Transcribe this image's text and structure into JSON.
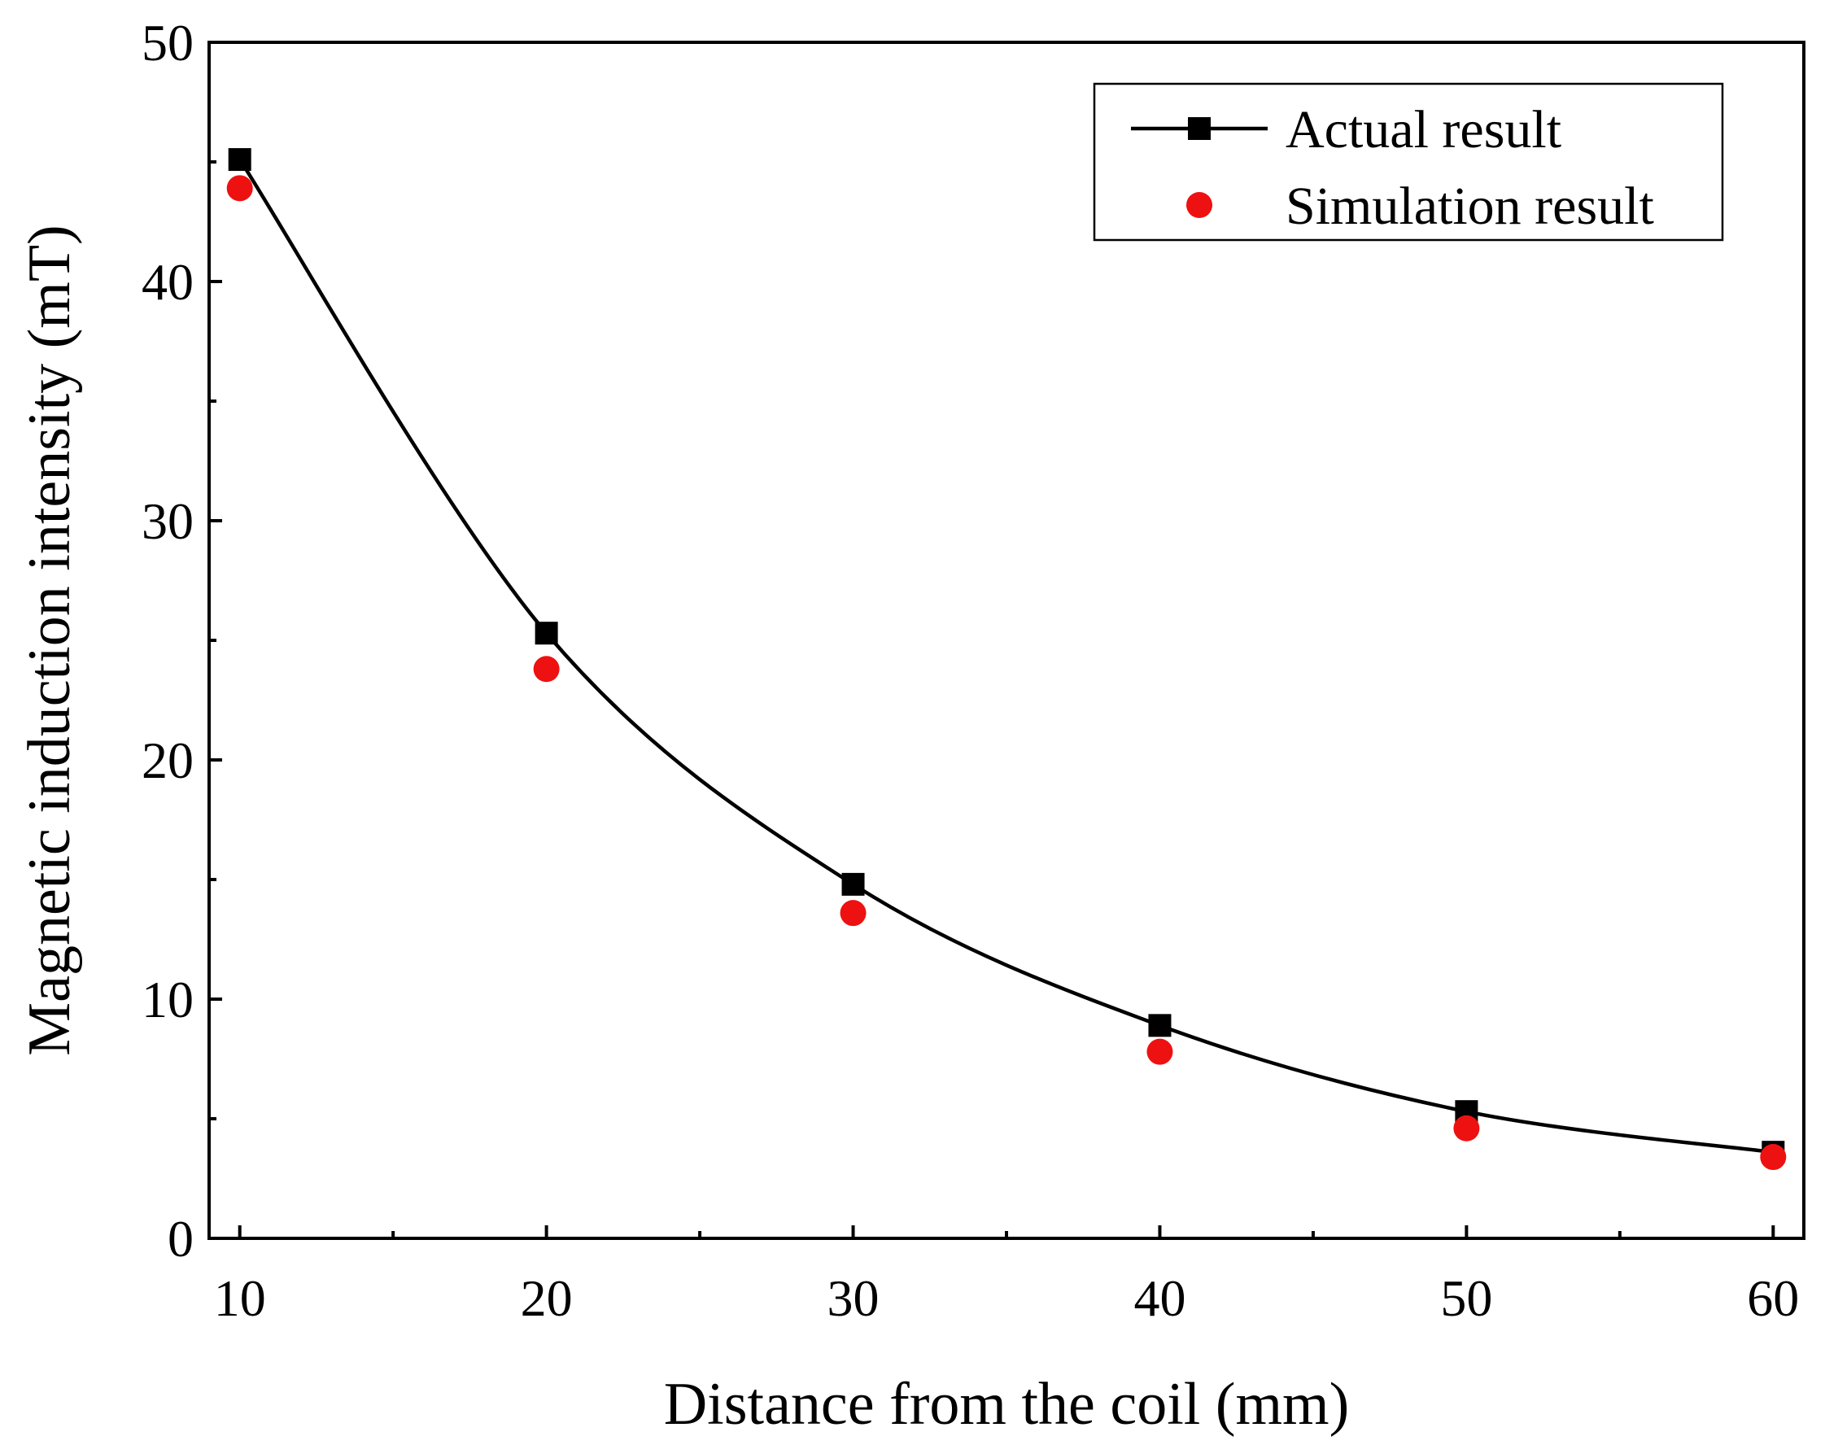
{
  "chart_data": {
    "type": "line",
    "xlabel": "Distance from the coil (mm)",
    "ylabel": "Magnetic induction intensity (mT)",
    "xlim": [
      9,
      61
    ],
    "ylim": [
      0,
      50
    ],
    "xticks": [
      "10",
      "20",
      "30",
      "40",
      "50",
      "60"
    ],
    "yticks": [
      "0",
      "10",
      "20",
      "30",
      "40",
      "50"
    ],
    "grid": false,
    "legend_position": "top-right",
    "series": [
      {
        "name": "Actual result",
        "style": "line-with-square-markers",
        "color": "#000000",
        "x": [
          10,
          20,
          30,
          40,
          50,
          60
        ],
        "y": [
          45.1,
          25.3,
          14.8,
          8.9,
          5.3,
          3.6
        ]
      },
      {
        "name": "Simulation result",
        "style": "circle-markers",
        "color": "#ee1111",
        "x": [
          10,
          20,
          30,
          40,
          50,
          60
        ],
        "y": [
          43.9,
          23.8,
          13.6,
          7.8,
          4.6,
          3.4
        ]
      }
    ]
  }
}
